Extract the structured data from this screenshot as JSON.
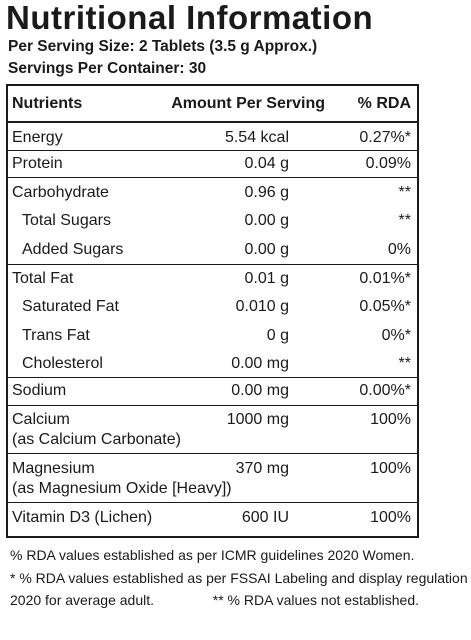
{
  "title": "Nutritional Information",
  "serving_size": "Per Serving Size: 2 Tablets (3.5 g Approx.)",
  "servings_per_container": "Servings Per Container: 30",
  "header": {
    "nutrient": "Nutrients",
    "amount": "Amount Per Serving",
    "rda": "% RDA"
  },
  "rows": [
    {
      "label": "Energy",
      "amount": "5.54 kcal",
      "rda": "0.27%*"
    },
    {
      "label": "Protein",
      "amount": "0.04 g",
      "rda": "0.09%"
    },
    {
      "label": "Carbohydrate",
      "amount": "0.96 g",
      "rda": "**"
    },
    {
      "label": "Total Sugars",
      "amount": "0.00 g",
      "rda": "**"
    },
    {
      "label": "Added Sugars",
      "amount": "0.00 g",
      "rda": "0%"
    },
    {
      "label": "Total Fat",
      "amount": "0.01 g",
      "rda": "0.01%*"
    },
    {
      "label": "Saturated Fat",
      "amount": "0.010 g",
      "rda": "0.05%*"
    },
    {
      "label": "Trans Fat",
      "amount": "0 g",
      "rda": "0%*"
    },
    {
      "label": "Cholesterol",
      "amount": "0.00 mg",
      "rda": "**"
    },
    {
      "label": "Sodium",
      "amount": "0.00 mg",
      "rda": "0.00%*"
    },
    {
      "label": "Calcium",
      "label2": "(as Calcium Carbonate)",
      "amount": "1000 mg",
      "rda": "100%"
    },
    {
      "label": "Magnesium",
      "label2": "(as Magnesium Oxide [Heavy])",
      "amount": "370 mg",
      "rda": "100%"
    },
    {
      "label": "Vitamin D3 (Lichen)",
      "amount": "600 IU",
      "rda": "100%"
    }
  ],
  "footnotes": {
    "line1": "% RDA values established as per ICMR guidelines 2020 Women.",
    "line2": "* % RDA values established as per FSSAI Labeling and display regulation",
    "line3": "2020 for average adult.",
    "line3b": "** % RDA values not established."
  }
}
